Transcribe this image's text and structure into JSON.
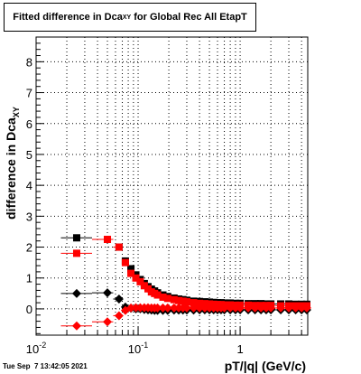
{
  "title": {
    "main": "Fitted difference in Dca",
    "sub": "XY",
    "rest": " for Global Rec All EtapT"
  },
  "footer": "Tue Sep  7 13:42:05 2021",
  "chart_data": {
    "type": "scatter",
    "title": "Fitted difference in Dca_XY for Global Rec All EtapT",
    "xlabel": "pT/|q| (GeV/c)",
    "ylabel": {
      "main": "difference in Dca",
      "sub": "XY"
    },
    "xscale": "log",
    "xlim": [
      0.01,
      4.6
    ],
    "ylim": [
      -0.85,
      8.8
    ],
    "x_ticks": [
      {
        "value": 0.01,
        "base": "10",
        "exp": "-2"
      },
      {
        "value": 0.1,
        "base": "10",
        "exp": "-1"
      },
      {
        "value": 1,
        "base": "1",
        "exp": ""
      }
    ],
    "y_ticks": [
      0,
      1,
      2,
      3,
      4,
      5,
      6,
      7,
      8
    ],
    "grid": true,
    "series": [
      {
        "marker": "square",
        "color": "#000000",
        "x_err": true,
        "x": [
          0.025,
          0.05,
          0.065,
          0.075,
          0.085,
          0.095,
          0.105,
          0.115,
          0.125,
          0.135,
          0.145,
          0.155,
          0.175,
          0.195,
          0.225,
          0.25,
          0.275,
          0.3,
          0.35,
          0.4,
          0.45,
          0.5,
          0.55,
          0.6,
          0.65,
          0.7,
          0.8,
          0.9,
          1.0,
          1.2,
          1.4,
          1.6,
          1.8,
          2.0,
          2.5,
          3.0,
          3.5,
          4.0,
          4.5
        ],
        "y": [
          2.3,
          2.25,
          2.0,
          1.55,
          1.3,
          1.1,
          0.95,
          0.82,
          0.72,
          0.64,
          0.58,
          0.52,
          0.45,
          0.4,
          0.35,
          0.32,
          0.3,
          0.28,
          0.25,
          0.24,
          0.23,
          0.22,
          0.21,
          0.2,
          0.2,
          0.19,
          0.19,
          0.18,
          0.18,
          0.17,
          0.17,
          0.17,
          0.16,
          0.16,
          0.16,
          0.16,
          0.15,
          0.15,
          0.15
        ]
      },
      {
        "marker": "square",
        "color": "#ff0000",
        "x_err": true,
        "x": [
          0.025,
          0.05,
          0.065,
          0.075,
          0.085,
          0.095,
          0.105,
          0.115,
          0.125,
          0.135,
          0.145,
          0.155,
          0.175,
          0.195,
          0.225,
          0.25,
          0.275,
          0.3,
          0.35,
          0.4,
          0.45,
          0.5,
          0.55,
          0.6,
          0.65,
          0.7,
          0.8,
          0.9,
          1.0,
          1.2,
          1.4,
          1.6,
          1.8,
          2.0,
          2.5,
          3.0,
          3.5,
          4.0,
          4.5
        ],
        "y": [
          1.8,
          2.25,
          2.0,
          1.5,
          1.15,
          1.0,
          0.88,
          0.75,
          0.65,
          0.55,
          0.5,
          0.45,
          0.38,
          0.34,
          0.3,
          0.27,
          0.25,
          0.23,
          0.2,
          0.18,
          0.17,
          0.16,
          0.15,
          0.14,
          0.14,
          0.13,
          0.13,
          0.12,
          0.12,
          0.12,
          0.11,
          0.11,
          0.11,
          0.11,
          0.1,
          0.1,
          0.1,
          0.1,
          0.1
        ]
      },
      {
        "marker": "diamond",
        "color": "#000000",
        "x_err": true,
        "x": [
          0.025,
          0.05,
          0.065,
          0.075,
          0.085,
          0.095,
          0.105,
          0.115,
          0.125,
          0.135,
          0.145,
          0.155,
          0.175,
          0.195,
          0.225,
          0.25,
          0.275,
          0.3,
          0.35,
          0.4,
          0.45,
          0.5,
          0.55,
          0.6,
          0.65,
          0.7,
          0.8,
          0.9,
          1.0,
          1.2,
          1.4,
          1.6,
          1.8,
          2.0,
          2.5,
          3.0,
          3.5,
          4.0,
          4.5
        ],
        "y": [
          0.5,
          0.52,
          0.32,
          0.06,
          0.02,
          0.0,
          0.0,
          -0.02,
          -0.03,
          -0.04,
          -0.05,
          -0.05,
          -0.05,
          -0.05,
          -0.04,
          -0.04,
          -0.04,
          -0.04,
          -0.04,
          -0.03,
          -0.03,
          -0.03,
          -0.03,
          -0.03,
          -0.03,
          -0.03,
          -0.03,
          -0.03,
          -0.03,
          -0.03,
          -0.03,
          -0.03,
          -0.03,
          -0.03,
          -0.03,
          -0.03,
          -0.03,
          -0.03,
          -0.03
        ]
      },
      {
        "marker": "diamond",
        "color": "#ff0000",
        "x_err": true,
        "x": [
          0.025,
          0.05,
          0.065,
          0.075,
          0.085,
          0.095,
          0.105,
          0.115,
          0.125,
          0.135,
          0.145,
          0.155,
          0.175,
          0.195,
          0.225,
          0.25,
          0.275,
          0.3,
          0.35,
          0.4,
          0.45,
          0.5,
          0.55,
          0.6,
          0.65,
          0.7,
          0.8,
          0.9,
          1.0,
          1.2,
          1.4,
          1.6,
          1.8,
          2.0,
          2.5,
          3.0,
          3.5,
          4.0,
          4.5
        ],
        "y": [
          -0.55,
          -0.42,
          -0.22,
          -0.05,
          0.03,
          0.04,
          0.04,
          0.04,
          0.04,
          0.03,
          0.03,
          0.03,
          0.03,
          0.03,
          0.03,
          0.03,
          0.03,
          0.03,
          0.03,
          0.03,
          0.03,
          0.03,
          0.03,
          0.03,
          0.03,
          0.03,
          0.03,
          0.03,
          0.03,
          0.03,
          0.03,
          0.03,
          0.03,
          0.03,
          0.03,
          0.03,
          0.03,
          0.03,
          0.03
        ]
      }
    ]
  }
}
